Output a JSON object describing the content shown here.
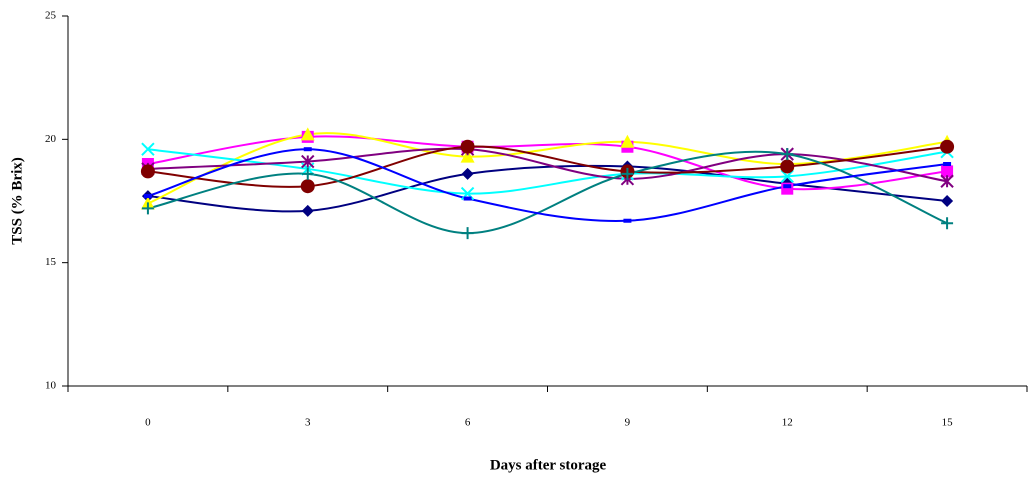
{
  "chart_data": {
    "type": "line",
    "x_label": "Days after storage",
    "y_label": "TSS (% Brix)",
    "categories": [
      0,
      3,
      6,
      9,
      12,
      15
    ],
    "ylim": [
      10,
      25
    ],
    "yticks": [
      10,
      15,
      20,
      25
    ],
    "smooth": true,
    "series": [
      {
        "color": "#000080",
        "marker": "diamond",
        "values": [
          17.7,
          17.1,
          18.6,
          18.9,
          18.2,
          17.5
        ]
      },
      {
        "color": "#ff00ff",
        "marker": "square",
        "values": [
          19.0,
          20.1,
          19.7,
          19.7,
          18.0,
          18.7
        ]
      },
      {
        "color": "#ffff00",
        "marker": "triangle",
        "values": [
          17.4,
          20.2,
          19.3,
          19.9,
          19.0,
          19.9
        ]
      },
      {
        "color": "#00ffff",
        "marker": "x",
        "values": [
          19.6,
          18.8,
          17.8,
          18.6,
          18.5,
          19.5
        ]
      },
      {
        "color": "#800080",
        "marker": "star",
        "values": [
          18.8,
          19.1,
          19.6,
          18.4,
          19.4,
          18.3
        ]
      },
      {
        "color": "#800000",
        "marker": "circle",
        "values": [
          18.7,
          18.1,
          19.7,
          18.7,
          18.9,
          19.7
        ]
      },
      {
        "color": "#008080",
        "marker": "plus",
        "values": [
          17.2,
          18.6,
          16.2,
          18.6,
          19.4,
          16.6
        ]
      },
      {
        "color": "#0000ff",
        "marker": "dash",
        "values": [
          17.7,
          19.6,
          17.6,
          16.7,
          18.1,
          19.0
        ]
      }
    ]
  }
}
